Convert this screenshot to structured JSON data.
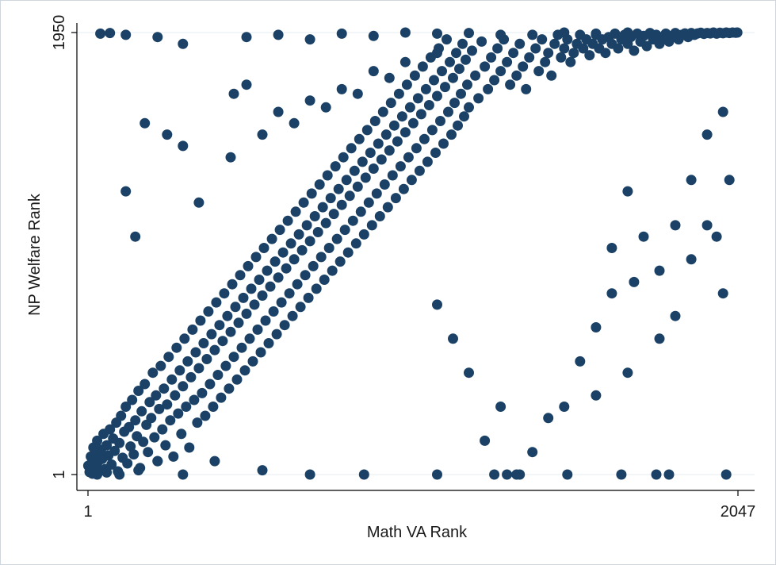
{
  "chart_data": {
    "type": "scatter",
    "title": "",
    "xlabel": "Math VA Rank",
    "ylabel": "NP Welfare Rank",
    "xlim": [
      1,
      2047
    ],
    "ylim": [
      1,
      1950
    ],
    "x_ticks": [
      {
        "value": 1,
        "label": "1"
      },
      {
        "value": 2047,
        "label": "2047"
      }
    ],
    "y_ticks": [
      {
        "value": 1,
        "label": "1"
      },
      {
        "value": 1950,
        "label": "1950"
      }
    ],
    "grid": true,
    "legend": "none",
    "marker_color": "#1b4266",
    "points": [
      [
        2,
        40
      ],
      [
        6,
        12
      ],
      [
        10,
        80
      ],
      [
        14,
        55
      ],
      [
        18,
        120
      ],
      [
        22,
        35
      ],
      [
        26,
        95
      ],
      [
        30,
        150
      ],
      [
        34,
        60
      ],
      [
        38,
        20
      ],
      [
        42,
        110
      ],
      [
        46,
        70
      ],
      [
        50,
        180
      ],
      [
        55,
        25
      ],
      [
        60,
        130
      ],
      [
        65,
        85
      ],
      [
        70,
        200
      ],
      [
        75,
        45
      ],
      [
        80,
        160
      ],
      [
        85,
        105
      ],
      [
        90,
        230
      ],
      [
        95,
        15
      ],
      [
        100,
        140
      ],
      [
        105,
        260
      ],
      [
        110,
        75
      ],
      [
        115,
        190
      ],
      [
        120,
        300
      ],
      [
        125,
        50
      ],
      [
        130,
        210
      ],
      [
        135,
        125
      ],
      [
        140,
        330
      ],
      [
        145,
        90
      ],
      [
        150,
        240
      ],
      [
        155,
        170
      ],
      [
        160,
        370
      ],
      [
        165,
        30
      ],
      [
        170,
        280
      ],
      [
        175,
        145
      ],
      [
        180,
        400
      ],
      [
        185,
        220
      ],
      [
        190,
        100
      ],
      [
        195,
        320
      ],
      [
        200,
        250
      ],
      [
        205,
        450
      ],
      [
        210,
        165
      ],
      [
        215,
        350
      ],
      [
        220,
        60
      ],
      [
        225,
        290
      ],
      [
        230,
        480
      ],
      [
        235,
        200
      ],
      [
        240,
        380
      ],
      [
        245,
        130
      ],
      [
        250,
        310
      ],
      [
        255,
        520
      ],
      [
        260,
        240
      ],
      [
        265,
        420
      ],
      [
        270,
        80
      ],
      [
        275,
        350
      ],
      [
        280,
        560
      ],
      [
        285,
        270
      ],
      [
        290,
        460
      ],
      [
        295,
        180
      ],
      [
        300,
        390
      ],
      [
        305,
        600
      ],
      [
        310,
        300
      ],
      [
        315,
        500
      ],
      [
        320,
        120
      ],
      [
        325,
        430
      ],
      [
        330,
        640
      ],
      [
        335,
        330
      ],
      [
        340,
        540
      ],
      [
        345,
        230
      ],
      [
        350,
        470
      ],
      [
        355,
        680
      ],
      [
        360,
        360
      ],
      [
        365,
        580
      ],
      [
        370,
        260
      ],
      [
        375,
        510
      ],
      [
        380,
        720
      ],
      [
        385,
        400
      ],
      [
        390,
        620
      ],
      [
        395,
        300
      ],
      [
        400,
        550
      ],
      [
        405,
        760
      ],
      [
        410,
        440
      ],
      [
        415,
        660
      ],
      [
        420,
        340
      ],
      [
        425,
        590
      ],
      [
        430,
        800
      ],
      [
        435,
        480
      ],
      [
        440,
        700
      ],
      [
        445,
        380
      ],
      [
        450,
        630
      ],
      [
        455,
        840
      ],
      [
        460,
        520
      ],
      [
        465,
        740
      ],
      [
        470,
        420
      ],
      [
        475,
        670
      ],
      [
        480,
        880
      ],
      [
        485,
        560
      ],
      [
        490,
        780
      ],
      [
        495,
        460
      ],
      [
        500,
        710
      ],
      [
        505,
        920
      ],
      [
        510,
        600
      ],
      [
        515,
        820
      ],
      [
        520,
        500
      ],
      [
        525,
        750
      ],
      [
        530,
        960
      ],
      [
        535,
        640
      ],
      [
        540,
        860
      ],
      [
        545,
        540
      ],
      [
        550,
        790
      ],
      [
        555,
        1000
      ],
      [
        560,
        680
      ],
      [
        565,
        900
      ],
      [
        570,
        580
      ],
      [
        575,
        830
      ],
      [
        580,
        1040
      ],
      [
        585,
        720
      ],
      [
        590,
        940
      ],
      [
        595,
        620
      ],
      [
        600,
        870
      ],
      [
        605,
        1080
      ],
      [
        610,
        760
      ],
      [
        615,
        980
      ],
      [
        620,
        660
      ],
      [
        625,
        910
      ],
      [
        630,
        1120
      ],
      [
        635,
        800
      ],
      [
        640,
        1020
      ],
      [
        645,
        700
      ],
      [
        650,
        950
      ],
      [
        655,
        1160
      ],
      [
        660,
        840
      ],
      [
        665,
        1060
      ],
      [
        670,
        740
      ],
      [
        675,
        990
      ],
      [
        680,
        1200
      ],
      [
        685,
        880
      ],
      [
        690,
        1100
      ],
      [
        695,
        780
      ],
      [
        700,
        1030
      ],
      [
        705,
        1240
      ],
      [
        710,
        920
      ],
      [
        715,
        1140
      ],
      [
        720,
        820
      ],
      [
        725,
        1070
      ],
      [
        730,
        1280
      ],
      [
        735,
        960
      ],
      [
        740,
        1180
      ],
      [
        745,
        860
      ],
      [
        750,
        1110
      ],
      [
        755,
        1320
      ],
      [
        760,
        1000
      ],
      [
        765,
        1220
      ],
      [
        770,
        900
      ],
      [
        775,
        1150
      ],
      [
        780,
        1360
      ],
      [
        785,
        1040
      ],
      [
        790,
        1260
      ],
      [
        795,
        940
      ],
      [
        800,
        1190
      ],
      [
        805,
        1400
      ],
      [
        810,
        1080
      ],
      [
        815,
        1300
      ],
      [
        820,
        980
      ],
      [
        825,
        1230
      ],
      [
        830,
        1440
      ],
      [
        835,
        1120
      ],
      [
        840,
        1340
      ],
      [
        845,
        1020
      ],
      [
        850,
        1270
      ],
      [
        855,
        1480
      ],
      [
        860,
        1160
      ],
      [
        865,
        1380
      ],
      [
        870,
        1060
      ],
      [
        875,
        1310
      ],
      [
        880,
        1520
      ],
      [
        885,
        1200
      ],
      [
        890,
        1420
      ],
      [
        895,
        1100
      ],
      [
        900,
        1350
      ],
      [
        905,
        1560
      ],
      [
        910,
        1240
      ],
      [
        915,
        1460
      ],
      [
        920,
        1140
      ],
      [
        925,
        1390
      ],
      [
        930,
        1600
      ],
      [
        935,
        1280
      ],
      [
        940,
        1500
      ],
      [
        945,
        1180
      ],
      [
        950,
        1430
      ],
      [
        955,
        1640
      ],
      [
        960,
        1320
      ],
      [
        965,
        1540
      ],
      [
        970,
        1220
      ],
      [
        975,
        1470
      ],
      [
        980,
        1680
      ],
      [
        985,
        1360
      ],
      [
        990,
        1580
      ],
      [
        995,
        1260
      ],
      [
        1000,
        1510
      ],
      [
        1005,
        1720
      ],
      [
        1010,
        1400
      ],
      [
        1015,
        1620
      ],
      [
        1020,
        1300
      ],
      [
        1025,
        1550
      ],
      [
        1030,
        1760
      ],
      [
        1035,
        1440
      ],
      [
        1040,
        1660
      ],
      [
        1045,
        1340
      ],
      [
        1050,
        1590
      ],
      [
        1055,
        1800
      ],
      [
        1060,
        1480
      ],
      [
        1065,
        1700
      ],
      [
        1070,
        1380
      ],
      [
        1075,
        1630
      ],
      [
        1080,
        1840
      ],
      [
        1085,
        1520
      ],
      [
        1090,
        1740
      ],
      [
        1095,
        1420
      ],
      [
        1100,
        1670
      ],
      [
        1105,
        1880
      ],
      [
        1110,
        1560
      ],
      [
        1115,
        1780
      ],
      [
        1120,
        1460
      ],
      [
        1125,
        1710
      ],
      [
        1130,
        1920
      ],
      [
        1135,
        1600
      ],
      [
        1140,
        1820
      ],
      [
        1145,
        1500
      ],
      [
        1150,
        1750
      ],
      [
        1155,
        1640
      ],
      [
        1160,
        1860
      ],
      [
        1165,
        1540
      ],
      [
        1170,
        1790
      ],
      [
        1175,
        1680
      ],
      [
        1180,
        1900
      ],
      [
        1185,
        1580
      ],
      [
        1190,
        1830
      ],
      [
        1195,
        1720
      ],
      [
        1200,
        1620
      ],
      [
        1210,
        1870
      ],
      [
        1220,
        1760
      ],
      [
        1230,
        1660
      ],
      [
        1240,
        1910
      ],
      [
        1250,
        1800
      ],
      [
        1260,
        1700
      ],
      [
        1270,
        1840
      ],
      [
        1280,
        1740
      ],
      [
        1290,
        1880
      ],
      [
        1300,
        1780
      ],
      [
        1310,
        1920
      ],
      [
        1320,
        1820
      ],
      [
        1330,
        1720
      ],
      [
        1340,
        1860
      ],
      [
        1350,
        1760
      ],
      [
        1360,
        1900
      ],
      [
        1370,
        1800
      ],
      [
        1380,
        1700
      ],
      [
        1390,
        1840
      ],
      [
        1400,
        1940
      ],
      [
        1410,
        1880
      ],
      [
        1420,
        1780
      ],
      [
        1430,
        1920
      ],
      [
        1440,
        1820
      ],
      [
        1450,
        1860
      ],
      [
        1460,
        1760
      ],
      [
        1470,
        1900
      ],
      [
        1480,
        1940
      ],
      [
        1490,
        1840
      ],
      [
        1500,
        1880
      ],
      [
        1510,
        1920
      ],
      [
        1520,
        1820
      ],
      [
        1530,
        1860
      ],
      [
        1540,
        1900
      ],
      [
        1550,
        1940
      ],
      [
        1560,
        1880
      ],
      [
        1570,
        1920
      ],
      [
        1580,
        1850
      ],
      [
        1590,
        1900
      ],
      [
        1600,
        1940
      ],
      [
        1610,
        1880
      ],
      [
        1620,
        1920
      ],
      [
        1630,
        1860
      ],
      [
        1640,
        1930
      ],
      [
        1650,
        1900
      ],
      [
        1660,
        1945
      ],
      [
        1670,
        1880
      ],
      [
        1680,
        1920
      ],
      [
        1690,
        1940
      ],
      [
        1700,
        1900
      ],
      [
        1710,
        1930
      ],
      [
        1720,
        1870
      ],
      [
        1730,
        1945
      ],
      [
        1740,
        1910
      ],
      [
        1750,
        1935
      ],
      [
        1760,
        1890
      ],
      [
        1770,
        1948
      ],
      [
        1780,
        1920
      ],
      [
        1790,
        1940
      ],
      [
        1800,
        1900
      ],
      [
        1810,
        1930
      ],
      [
        1820,
        1945
      ],
      [
        1830,
        1910
      ],
      [
        1840,
        1935
      ],
      [
        1850,
        1948
      ],
      [
        1860,
        1920
      ],
      [
        1870,
        1940
      ],
      [
        1880,
        1946
      ],
      [
        1890,
        1930
      ],
      [
        1900,
        1948
      ],
      [
        1910,
        1940
      ],
      [
        1920,
        1946
      ],
      [
        1930,
        1949
      ],
      [
        1940,
        1944
      ],
      [
        1950,
        1948
      ],
      [
        1960,
        1946
      ],
      [
        1970,
        1950
      ],
      [
        1980,
        1945
      ],
      [
        1990,
        1949
      ],
      [
        2000,
        1947
      ],
      [
        2010,
        1950
      ],
      [
        2020,
        1948
      ],
      [
        2030,
        1950
      ],
      [
        2040,
        1949
      ],
      [
        2045,
        1950
      ],
      [
        40,
        1945
      ],
      [
        70,
        1948
      ],
      [
        120,
        1940
      ],
      [
        220,
        1930
      ],
      [
        300,
        1900
      ],
      [
        500,
        1930
      ],
      [
        600,
        1940
      ],
      [
        700,
        1920
      ],
      [
        800,
        1945
      ],
      [
        900,
        1935
      ],
      [
        1000,
        1950
      ],
      [
        1100,
        1945
      ],
      [
        1200,
        1948
      ],
      [
        1300,
        1940
      ],
      [
        1500,
        1950
      ],
      [
        1600,
        1945
      ],
      [
        1700,
        1950
      ],
      [
        180,
        1550
      ],
      [
        250,
        1500
      ],
      [
        120,
        1250
      ],
      [
        150,
        1050
      ],
      [
        300,
        1450
      ],
      [
        460,
        1680
      ],
      [
        500,
        1720
      ],
      [
        600,
        1600
      ],
      [
        700,
        1650
      ],
      [
        800,
        1700
      ],
      [
        900,
        1780
      ],
      [
        1000,
        1820
      ],
      [
        1100,
        1860
      ],
      [
        350,
        1200
      ],
      [
        450,
        1400
      ],
      [
        550,
        1500
      ],
      [
        650,
        1550
      ],
      [
        750,
        1620
      ],
      [
        850,
        1680
      ],
      [
        950,
        1750
      ],
      [
        1700,
        1250
      ],
      [
        1750,
        1050
      ],
      [
        1800,
        900
      ],
      [
        1850,
        1100
      ],
      [
        1900,
        1300
      ],
      [
        1950,
        1500
      ],
      [
        2000,
        1600
      ],
      [
        2020,
        1300
      ],
      [
        1650,
        800
      ],
      [
        1600,
        650
      ],
      [
        1550,
        500
      ],
      [
        1500,
        300
      ],
      [
        1450,
        250
      ],
      [
        1400,
        100
      ],
      [
        1350,
        1
      ],
      [
        1300,
        300
      ],
      [
        1250,
        150
      ],
      [
        1200,
        450
      ],
      [
        1150,
        600
      ],
      [
        1100,
        750
      ],
      [
        2010,
        1
      ],
      [
        1830,
        1
      ],
      [
        1790,
        1
      ],
      [
        1680,
        1
      ],
      [
        1510,
        1
      ],
      [
        1360,
        1
      ],
      [
        1320,
        1
      ],
      [
        1280,
        1
      ],
      [
        1100,
        1
      ],
      [
        870,
        1
      ],
      [
        700,
        1
      ],
      [
        550,
        20
      ],
      [
        400,
        60
      ],
      [
        300,
        1
      ],
      [
        220,
        60
      ],
      [
        160,
        20
      ],
      [
        100,
        1
      ],
      [
        60,
        10
      ],
      [
        30,
        1
      ],
      [
        15,
        5
      ],
      [
        1600,
        350
      ],
      [
        1700,
        450
      ],
      [
        1800,
        600
      ],
      [
        1650,
        1000
      ],
      [
        1720,
        850
      ],
      [
        1850,
        700
      ],
      [
        1900,
        950
      ],
      [
        1950,
        1100
      ],
      [
        1980,
        1050
      ],
      [
        2000,
        800
      ]
    ]
  }
}
